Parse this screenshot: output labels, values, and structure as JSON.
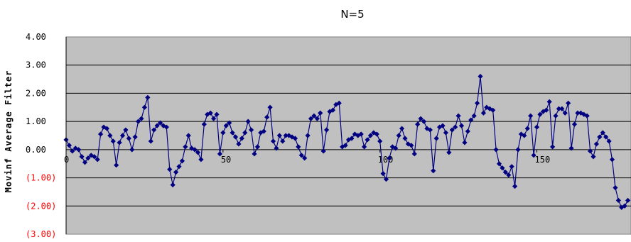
{
  "chart_data": {
    "type": "line",
    "title": "N=5",
    "ylabel": "Movinf Average Filter",
    "xlabel": "",
    "ylim": [
      -3,
      4
    ],
    "xlim": [
      0,
      180
    ],
    "x_ticks": [
      {
        "value": 0,
        "label": "0"
      },
      {
        "value": 50,
        "label": "50"
      },
      {
        "value": 100,
        "label": "100"
      },
      {
        "value": 150,
        "label": "150"
      }
    ],
    "y_ticks": [
      {
        "value": 4,
        "label": "4.00",
        "color": "#000000"
      },
      {
        "value": 3,
        "label": "3.00",
        "color": "#000000"
      },
      {
        "value": 2,
        "label": "2.00",
        "color": "#000000"
      },
      {
        "value": 1,
        "label": "1.00",
        "color": "#000000"
      },
      {
        "value": 0,
        "label": "0.00",
        "color": "#000000"
      },
      {
        "value": -1,
        "label": "(1.00)",
        "color": "#ff0000"
      },
      {
        "value": -2,
        "label": "(2.00)",
        "color": "#ff0000"
      },
      {
        "value": -3,
        "label": "(3.00)",
        "color": "#ff0000"
      }
    ],
    "grid": "horizontal",
    "colors": {
      "plot_area": "#c0c0c0",
      "series": "#000080",
      "grid": "#000000",
      "negative_ticks": "#ff0000"
    },
    "series": [
      {
        "values": [
          0.35,
          0.15,
          -0.05,
          0.05,
          0.0,
          -0.25,
          -0.45,
          -0.3,
          -0.2,
          -0.25,
          -0.35,
          0.55,
          0.8,
          0.75,
          0.5,
          0.3,
          -0.55,
          0.25,
          0.5,
          0.7,
          0.4,
          0.0,
          0.45,
          1.0,
          1.1,
          1.5,
          1.85,
          0.3,
          0.7,
          0.85,
          0.95,
          0.85,
          0.8,
          -0.7,
          -1.25,
          -0.8,
          -0.6,
          -0.4,
          0.1,
          0.5,
          0.05,
          0.0,
          -0.1,
          -0.35,
          0.9,
          1.25,
          1.3,
          1.1,
          1.25,
          -0.15,
          0.6,
          0.85,
          0.95,
          0.6,
          0.45,
          0.2,
          0.4,
          0.6,
          1.0,
          0.7,
          -0.15,
          0.1,
          0.6,
          0.65,
          1.15,
          1.5,
          0.3,
          0.05,
          0.5,
          0.3,
          0.5,
          0.5,
          0.45,
          0.4,
          0.1,
          -0.2,
          -0.3,
          0.5,
          1.1,
          1.2,
          1.1,
          1.3,
          -0.05,
          0.7,
          1.35,
          1.4,
          1.6,
          1.65,
          0.1,
          0.15,
          0.35,
          0.4,
          0.55,
          0.5,
          0.55,
          0.1,
          0.35,
          0.5,
          0.6,
          0.55,
          0.3,
          -0.85,
          -1.05,
          -0.3,
          0.1,
          0.05,
          0.5,
          0.75,
          0.4,
          0.2,
          0.15,
          -0.15,
          0.9,
          1.1,
          1.0,
          0.75,
          0.7,
          -0.75,
          0.4,
          0.8,
          0.85,
          0.6,
          -0.1,
          0.7,
          0.8,
          1.2,
          0.85,
          0.25,
          0.65,
          1.05,
          1.2,
          1.65,
          2.6,
          1.3,
          1.5,
          1.45,
          1.4,
          0.0,
          -0.5,
          -0.65,
          -0.8,
          -0.9,
          -0.6,
          -1.3,
          0.0,
          0.55,
          0.5,
          0.75,
          1.2,
          -0.2,
          0.8,
          1.25,
          1.35,
          1.4,
          1.7,
          0.1,
          1.2,
          1.45,
          1.45,
          1.3,
          1.65,
          0.05,
          0.9,
          1.3,
          1.3,
          1.25,
          1.2,
          -0.05,
          -0.25,
          0.2,
          0.45,
          0.6,
          0.45,
          0.3,
          -0.35,
          -1.35,
          -1.8,
          -2.05,
          -2.0,
          -1.8
        ]
      }
    ]
  }
}
